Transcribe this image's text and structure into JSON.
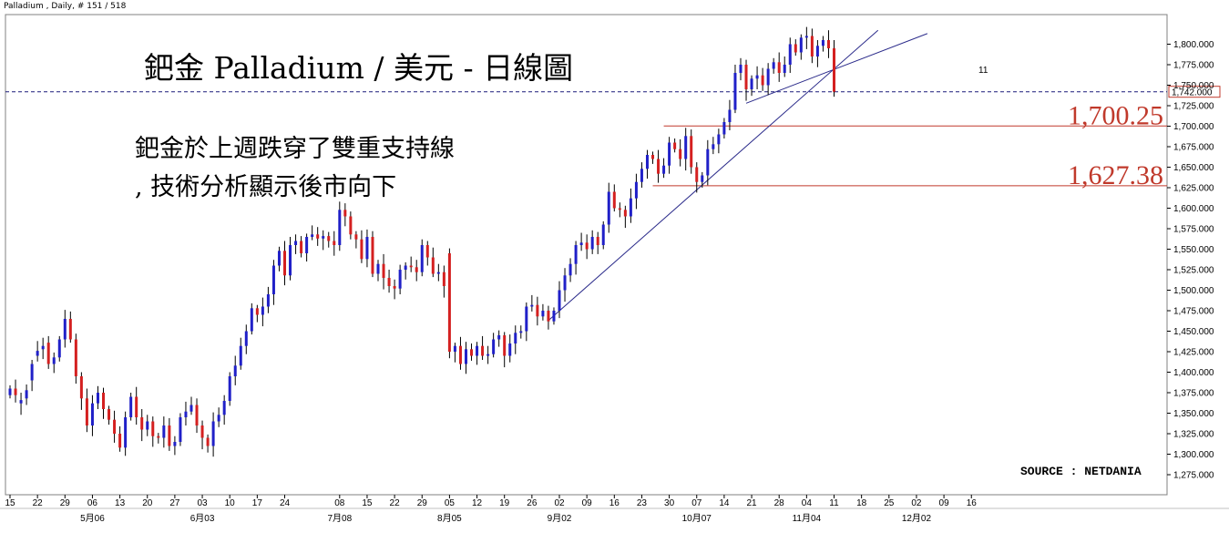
{
  "window": {
    "title": "Palladium , Daily, # 151 / 518"
  },
  "chart_data": {
    "type": "candlestick",
    "title": "鈀金 Palladium / 美元 - 日線圖",
    "annotation_lines": [
      "鈀金於上週跌穿了雙重支持線",
      ", 技術分析顯示後市向下"
    ],
    "source": "SOURCE : NETDANIA",
    "current_price": "1,742.000",
    "trendline_marker": "11",
    "y_range": [
      1262,
      1822
    ],
    "y_ticks": [
      1275,
      1300,
      1325,
      1350,
      1375,
      1400,
      1425,
      1450,
      1475,
      1500,
      1525,
      1550,
      1575,
      1600,
      1625,
      1650,
      1675,
      1700,
      1725,
      1750,
      1775,
      1800
    ],
    "y_tick_labels": [
      "1,275.000",
      "1,300.000",
      "1,325.000",
      "1,350.000",
      "1,375.000",
      "1,400.000",
      "1,425.000",
      "1,450.000",
      "1,475.000",
      "1,500.000",
      "1,525.000",
      "1,550.000",
      "1,575.000",
      "1,600.000",
      "1,625.000",
      "1,650.000",
      "1,675.000",
      "1,700.000",
      "1,725.000",
      "1,750.000",
      "1,775.000",
      "1,800.000"
    ],
    "x_ticks": [
      {
        "label": "15",
        "i": 0
      },
      {
        "label": "22",
        "i": 5
      },
      {
        "label": "29",
        "i": 10
      },
      {
        "label": "06",
        "i": 15
      },
      {
        "label": "13",
        "i": 20
      },
      {
        "label": "20",
        "i": 25
      },
      {
        "label": "27",
        "i": 30
      },
      {
        "label": "03",
        "i": 35
      },
      {
        "label": "10",
        "i": 40
      },
      {
        "label": "17",
        "i": 45
      },
      {
        "label": "24",
        "i": 50
      },
      {
        "label": "08",
        "i": 60
      },
      {
        "label": "15",
        "i": 65
      },
      {
        "label": "22",
        "i": 70
      },
      {
        "label": "29",
        "i": 75
      },
      {
        "label": "05",
        "i": 80
      },
      {
        "label": "12",
        "i": 85
      },
      {
        "label": "19",
        "i": 90
      },
      {
        "label": "26",
        "i": 95
      },
      {
        "label": "02",
        "i": 100
      },
      {
        "label": "09",
        "i": 105
      },
      {
        "label": "16",
        "i": 110
      },
      {
        "label": "23",
        "i": 115
      },
      {
        "label": "30",
        "i": 120
      },
      {
        "label": "07",
        "i": 125
      },
      {
        "label": "14",
        "i": 130
      },
      {
        "label": "21",
        "i": 135
      },
      {
        "label": "28",
        "i": 140
      },
      {
        "label": "04",
        "i": 145
      },
      {
        "label": "11",
        "i": 150
      },
      {
        "label": "18",
        "i": 155
      },
      {
        "label": "25",
        "i": 160
      },
      {
        "label": "02",
        "i": 165
      },
      {
        "label": "09",
        "i": 170
      },
      {
        "label": "16",
        "i": 175
      }
    ],
    "month_labels": [
      {
        "label": "5月06",
        "i": 15
      },
      {
        "label": "6月03",
        "i": 35
      },
      {
        "label": "7月08",
        "i": 60
      },
      {
        "label": "8月05",
        "i": 80
      },
      {
        "label": "9月02",
        "i": 100
      },
      {
        "label": "10月07",
        "i": 125
      },
      {
        "label": "11月04",
        "i": 145
      },
      {
        "label": "12月02",
        "i": 165
      }
    ],
    "support_levels": [
      {
        "label": "1,700.25",
        "value": 1700.25,
        "from_i": 119
      },
      {
        "label": "1,627.38",
        "value": 1627.38,
        "from_i": 117
      }
    ],
    "trendlines": [
      {
        "from": {
          "i": 98,
          "v": 1463
        },
        "to": {
          "i": 158,
          "v": 1817
        }
      },
      {
        "from": {
          "i": 134,
          "v": 1728
        },
        "to": {
          "i": 167,
          "v": 1813
        }
      }
    ],
    "colors": {
      "up": "#2020c8",
      "down": "#d42020",
      "wick": "#000000",
      "level": "#c0392b",
      "trend": "#2a2a8a",
      "current": "#1a1a7a"
    },
    "closes": [
      1380,
      1372,
      1366,
      1378,
      1410,
      1426,
      1432,
      1410,
      1418,
      1440,
      1465,
      1440,
      1395,
      1368,
      1335,
      1362,
      1375,
      1355,
      1342,
      1325,
      1308,
      1345,
      1370,
      1345,
      1330,
      1340,
      1322,
      1320,
      1335,
      1310,
      1315,
      1345,
      1352,
      1360,
      1335,
      1320,
      1310,
      1340,
      1348,
      1365,
      1395,
      1408,
      1432,
      1450,
      1478,
      1470,
      1480,
      1495,
      1530,
      1548,
      1518,
      1555,
      1560,
      1545,
      1565,
      1568,
      1563,
      1566,
      1560,
      1555,
      1598,
      1590,
      1568,
      1562,
      1538,
      1565,
      1520,
      1532,
      1515,
      1505,
      1502,
      1525,
      1530,
      1528,
      1522,
      1555,
      1540,
      1520,
      1522,
      1505,
      1425,
      1432,
      1410,
      1428,
      1420,
      1432,
      1420,
      1422,
      1440,
      1445,
      1420,
      1435,
      1448,
      1450,
      1480,
      1482,
      1468,
      1475,
      1462,
      1475,
      1500,
      1518,
      1532,
      1555,
      1558,
      1550,
      1565,
      1555,
      1580,
      1620,
      1600,
      1598,
      1590,
      1612,
      1632,
      1648,
      1665,
      1660,
      1642,
      1652,
      1680,
      1672,
      1660,
      1688,
      1650,
      1632,
      1640,
      1672,
      1678,
      1690,
      1705,
      1720,
      1765,
      1775,
      1745,
      1758,
      1762,
      1750,
      1770,
      1778,
      1765,
      1775,
      1800,
      1790,
      1808,
      1810,
      1785,
      1798,
      1805,
      1795,
      1742
    ],
    "opens": [
      1372,
      1380,
      1362,
      1368,
      1390,
      1420,
      1428,
      1436,
      1410,
      1418,
      1440,
      1465,
      1440,
      1395,
      1368,
      1335,
      1362,
      1375,
      1355,
      1342,
      1325,
      1308,
      1345,
      1370,
      1345,
      1330,
      1340,
      1322,
      1320,
      1335,
      1310,
      1315,
      1345,
      1352,
      1360,
      1335,
      1320,
      1310,
      1340,
      1348,
      1365,
      1395,
      1408,
      1432,
      1450,
      1478,
      1470,
      1480,
      1495,
      1530,
      1548,
      1518,
      1555,
      1560,
      1545,
      1565,
      1568,
      1563,
      1566,
      1560,
      1555,
      1598,
      1590,
      1568,
      1562,
      1538,
      1565,
      1520,
      1532,
      1515,
      1505,
      1502,
      1525,
      1530,
      1528,
      1522,
      1555,
      1540,
      1520,
      1522,
      1545,
      1425,
      1432,
      1410,
      1428,
      1420,
      1432,
      1420,
      1422,
      1440,
      1445,
      1420,
      1435,
      1448,
      1450,
      1480,
      1482,
      1468,
      1475,
      1462,
      1475,
      1500,
      1518,
      1532,
      1555,
      1558,
      1550,
      1565,
      1555,
      1580,
      1620,
      1600,
      1598,
      1590,
      1612,
      1632,
      1648,
      1665,
      1660,
      1642,
      1652,
      1680,
      1672,
      1660,
      1688,
      1650,
      1632,
      1640,
      1672,
      1678,
      1690,
      1705,
      1720,
      1765,
      1775,
      1745,
      1758,
      1762,
      1750,
      1770,
      1778,
      1765,
      1775,
      1800,
      1790,
      1808,
      1810,
      1785,
      1798,
      1805,
      1795
    ]
  }
}
